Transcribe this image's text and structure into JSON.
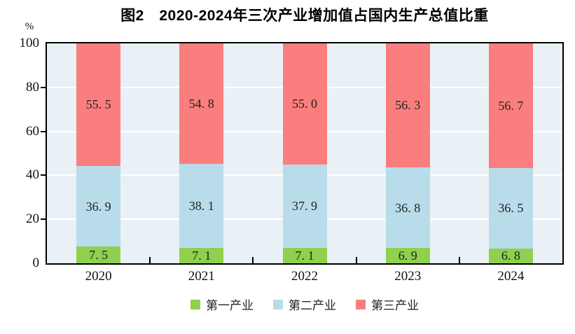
{
  "chart_data": {
    "type": "bar",
    "stacked": true,
    "title": "图2　2020-2024年三次产业增加值占国内生产总值比重",
    "unit_label": "%",
    "categories": [
      "2020",
      "2021",
      "2022",
      "2023",
      "2024"
    ],
    "series": [
      {
        "name": "第一产业",
        "color": "#8fd04e",
        "values": [
          7.5,
          7.1,
          7.1,
          6.9,
          6.8
        ]
      },
      {
        "name": "第二产业",
        "color": "#b9dcea",
        "values": [
          36.9,
          38.1,
          37.9,
          36.8,
          36.5
        ]
      },
      {
        "name": "第三产业",
        "color": "#fa7e7e",
        "values": [
          55.5,
          54.8,
          55.0,
          56.3,
          56.7
        ]
      }
    ],
    "ylim": [
      0,
      100
    ],
    "yticks": [
      0,
      20,
      40,
      60,
      80,
      100
    ],
    "grid": true,
    "gridline_color": "#ffffff",
    "plot_background": "#e9f1f6",
    "legend_position": "bottom",
    "value_labels_shown": true
  }
}
